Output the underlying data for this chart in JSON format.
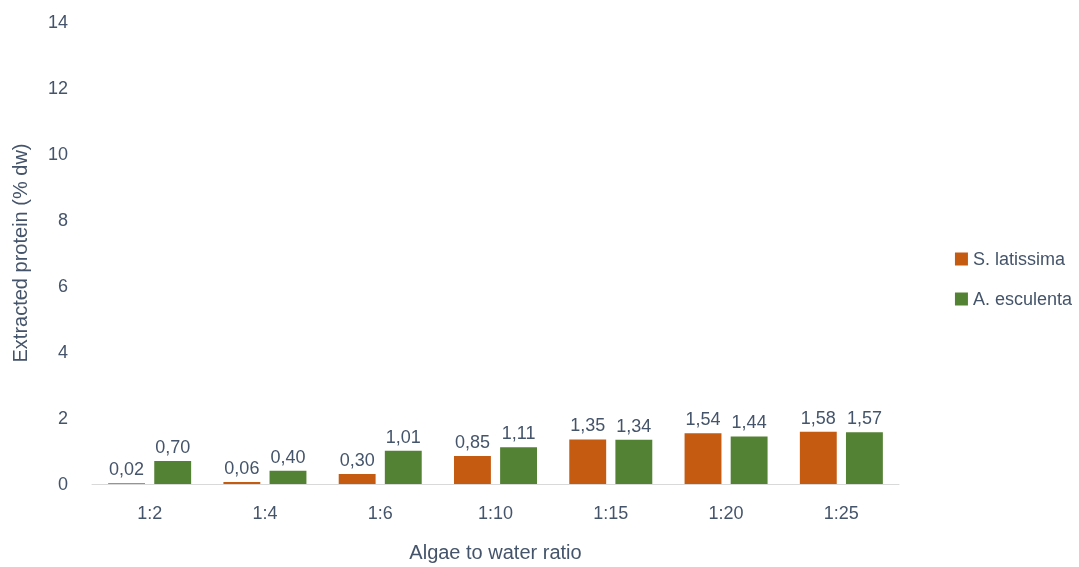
{
  "chart_data": {
    "type": "bar",
    "xlabel": "Algae to water ratio",
    "ylabel": "Extracted protein (% dw)",
    "categories": [
      "1:2",
      "1:4",
      "1:6",
      "1:10",
      "1:15",
      "1:20",
      "1:25"
    ],
    "series": [
      {
        "name": "S. latissima",
        "color": "#c55a11",
        "values": [
          0.02,
          0.06,
          0.3,
          0.85,
          1.35,
          1.54,
          1.58
        ],
        "value_labels": [
          "0,02",
          "0,06",
          "0,30",
          "0,85",
          "1,35",
          "1,54",
          "1,58"
        ]
      },
      {
        "name": "A. esculenta",
        "color": "#548235",
        "values": [
          0.7,
          0.4,
          1.01,
          1.11,
          1.34,
          1.44,
          1.57
        ],
        "value_labels": [
          "0,70",
          "0,40",
          "1,01",
          "1,11",
          "1,34",
          "1,44",
          "1,57"
        ]
      }
    ],
    "ylim": [
      0,
      14
    ],
    "yticks": [
      0,
      2,
      4,
      6,
      8,
      10,
      12,
      14
    ],
    "grid": false,
    "legend": "right"
  }
}
